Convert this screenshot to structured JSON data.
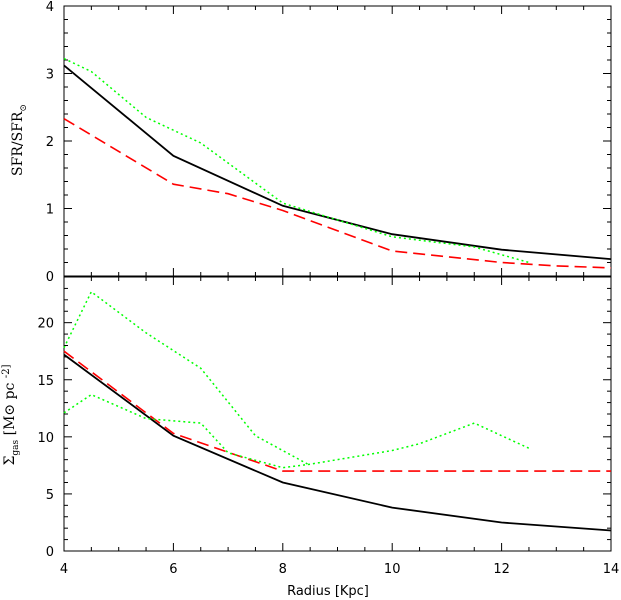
{
  "chart_data": [
    {
      "type": "line",
      "panel": "top",
      "ylabel_main": "SFR/SFR",
      "ylabel_sub": "⊙",
      "xlim": [
        4,
        14
      ],
      "ylim": [
        0,
        4
      ],
      "xticks": [
        4,
        6,
        8,
        10,
        12,
        14
      ],
      "yticks": [
        0,
        1,
        2,
        3,
        4
      ],
      "series": [
        {
          "style": "solid",
          "color": "#000000",
          "x": [
            4,
            6,
            8,
            10,
            12,
            14
          ],
          "y": [
            3.12,
            1.78,
            1.04,
            0.62,
            0.39,
            0.25
          ]
        },
        {
          "style": "dashed",
          "color": "#ff0000",
          "x": [
            4,
            6,
            7,
            8,
            10,
            12,
            13,
            14
          ],
          "y": [
            2.33,
            1.36,
            1.22,
            0.97,
            0.37,
            0.2,
            0.15,
            0.12
          ]
        },
        {
          "style": "dotted",
          "color": "#00ff00",
          "x": [
            4,
            4.5,
            5.5,
            6.5,
            8,
            10,
            11.5,
            12.5
          ],
          "y": [
            3.22,
            3.03,
            2.35,
            1.97,
            1.08,
            0.58,
            0.43,
            0.2
          ]
        }
      ]
    },
    {
      "type": "line",
      "panel": "bottom",
      "ylabel_main": "Σ",
      "ylabel_sub": "gas",
      "ylabel_rest": " [M⊙ pc^-2]",
      "xlabel": "Radius [Kpc]",
      "xlim": [
        4,
        14
      ],
      "ylim": [
        0,
        24
      ],
      "xticks": [
        4,
        6,
        8,
        10,
        12,
        14
      ],
      "yticks": [
        0,
        5,
        10,
        15,
        20
      ],
      "series": [
        {
          "style": "solid",
          "color": "#000000",
          "x": [
            4,
            6,
            8,
            10,
            12,
            14
          ],
          "y": [
            17.2,
            10.1,
            6.0,
            3.8,
            2.5,
            1.8
          ]
        },
        {
          "style": "dashed",
          "color": "#ff0000",
          "x": [
            4,
            6,
            8,
            9,
            10,
            12,
            14
          ],
          "y": [
            17.5,
            10.3,
            7.0,
            7.0,
            7.0,
            7.0,
            7.0
          ]
        },
        {
          "style": "dotted",
          "color": "#00ff00",
          "x": [
            4,
            4.5,
            5.5,
            6.5,
            7.5,
            8.5
          ],
          "y": [
            17.8,
            22.7,
            19.1,
            16.0,
            10.1,
            7.5
          ]
        },
        {
          "style": "dotted",
          "color": "#00ff00",
          "x": [
            4,
            4.5,
            5.5,
            6.5,
            7,
            8,
            8.5,
            10,
            10.5,
            11.5,
            12.5
          ],
          "y": [
            12.1,
            13.7,
            11.6,
            11.2,
            8.6,
            7.3,
            7.6,
            8.8,
            9.4,
            11.2,
            9.0
          ]
        }
      ]
    }
  ]
}
